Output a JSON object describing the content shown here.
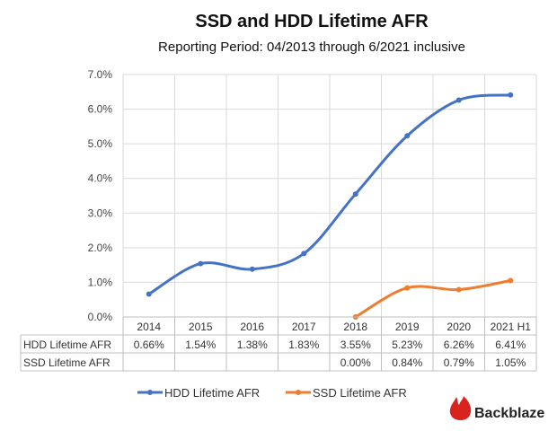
{
  "chart_data": {
    "type": "line",
    "title": "SSD and HDD Lifetime AFR",
    "subtitle": "Reporting Period: 04/2013 through 6/2021 inclusive",
    "categories": [
      "2014",
      "2015",
      "2016",
      "2017",
      "2018",
      "2019",
      "2020",
      "2021 H1"
    ],
    "y_ticks": [
      "0.0%",
      "1.0%",
      "2.0%",
      "3.0%",
      "4.0%",
      "5.0%",
      "6.0%",
      "7.0%"
    ],
    "ylim": [
      0,
      7
    ],
    "grid": true,
    "legend_position": "bottom",
    "series": [
      {
        "name": "HDD Lifetime AFR",
        "color": "#4472c4",
        "values": [
          0.66,
          1.54,
          1.38,
          1.83,
          3.55,
          5.23,
          6.26,
          6.41
        ],
        "labels": [
          "0.66%",
          "1.54%",
          "1.38%",
          "1.83%",
          "3.55%",
          "5.23%",
          "6.26%",
          "6.41%"
        ]
      },
      {
        "name": "SSD Lifetime AFR",
        "color": "#ed7d31",
        "values": [
          null,
          null,
          null,
          null,
          0.0,
          0.84,
          0.79,
          1.05
        ],
        "labels": [
          "",
          "",
          "",
          "",
          "0.00%",
          "0.84%",
          "0.79%",
          "1.05%"
        ]
      }
    ]
  },
  "brand": {
    "name": "Backblaze",
    "icon": "flame-icon",
    "color": "#d9231f"
  }
}
